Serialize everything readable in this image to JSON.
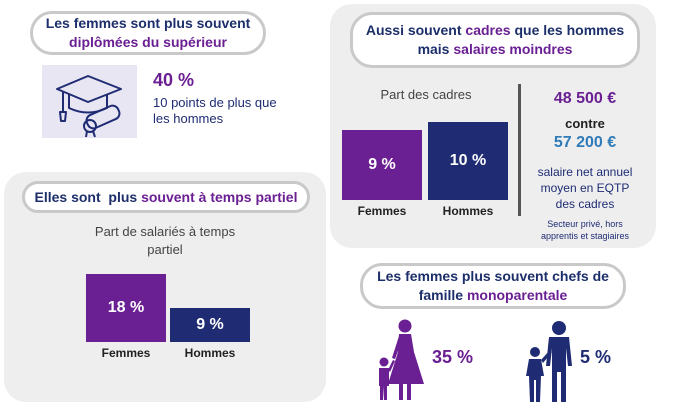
{
  "colors": {
    "purple": "#6a1f93",
    "navy": "#1f2c73",
    "panel": "#eeeeef",
    "pill_border": "#c9c9c9"
  },
  "diploma": {
    "heading_line1": "Les femmes sont plus souvent",
    "heading_line2": "diplômées du supérieur",
    "percent": "40 %",
    "desc_line1": "10 points de plus que",
    "desc_line2": "les hommes",
    "icon": "graduation-cap-icon"
  },
  "part_time": {
    "heading_prefix": "Elles sont  plus ",
    "heading_highlight": "souvent à temps partiel",
    "chart_title_line1": "Part de salariés à temps",
    "chart_title_line2": "partiel",
    "women_value": "18 %",
    "men_value": "9 %",
    "women_label": "Femmes",
    "men_label": "Hommes",
    "women_pct": 18,
    "men_pct": 9
  },
  "executives": {
    "heading_part1": "Aussi souvent ",
    "heading_part2": "cadres",
    "heading_part3": " que les hommes",
    "heading_part4": "mais ",
    "heading_part5": "salaires moindres",
    "chart_title": "Part des cadres",
    "women_value": "9 %",
    "men_value": "10 %",
    "women_label": "Femmes",
    "men_label": "Hommes",
    "women_pct": 9,
    "men_pct": 10,
    "women_salary": "48 500 €",
    "versus": "contre",
    "men_salary": "57 200 €",
    "salary_desc_line1": "salaire net annuel",
    "salary_desc_line2": "moyen en EQTP",
    "salary_desc_line3": "des cadres",
    "note_line1": "Secteur privé, hors",
    "note_line2": "apprentis et stagiaires"
  },
  "single_parent": {
    "heading_line1": "Les femmes plus souvent chefs de",
    "heading_line2_prefix": "famille ",
    "heading_line2_highlight": "monoparentale",
    "women_value": "35 %",
    "men_value": "5 %",
    "women_icon": "mother-child-icon",
    "men_icon": "father-child-icon"
  }
}
